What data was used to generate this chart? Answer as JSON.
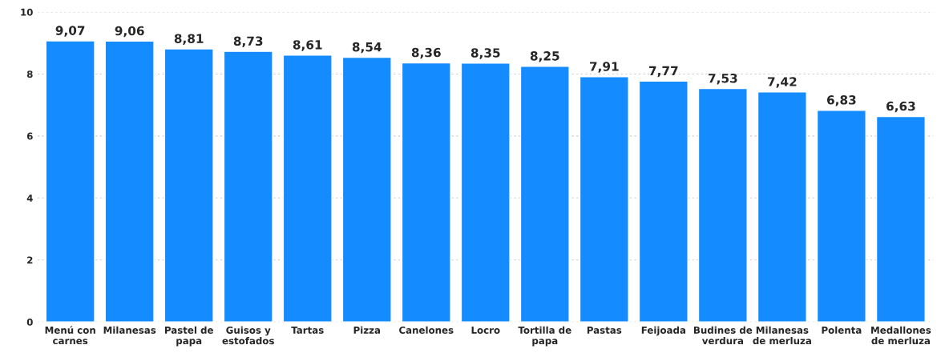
{
  "chart_data": {
    "type": "bar",
    "categories": [
      "Menú con\ncarnes",
      "Milanesas",
      "Pastel de\npapa",
      "Guisos y\nestofados",
      "Tartas",
      "Pizza",
      "Canelones",
      "Locro",
      "Tortilla de\npapa",
      "Pastas",
      "Feijoada",
      "Budines de\nverdura",
      "Milanesas\nde merluza",
      "Polenta",
      "Medallones\nde merluza"
    ],
    "values": [
      9.07,
      9.06,
      8.81,
      8.73,
      8.61,
      8.54,
      8.36,
      8.35,
      8.25,
      7.91,
      7.77,
      7.53,
      7.42,
      6.83,
      6.63
    ],
    "value_labels": [
      "9,07",
      "9,06",
      "8,81",
      "8,73",
      "8,61",
      "8,54",
      "8,36",
      "8,35",
      "8,25",
      "7,91",
      "7,77",
      "7,53",
      "7,42",
      "6,83",
      "6,63"
    ],
    "color": "#148cff",
    "ylim": [
      0,
      10
    ],
    "yticks": [
      0,
      2,
      4,
      6,
      8,
      10
    ],
    "grid": "y",
    "legend": false
  }
}
